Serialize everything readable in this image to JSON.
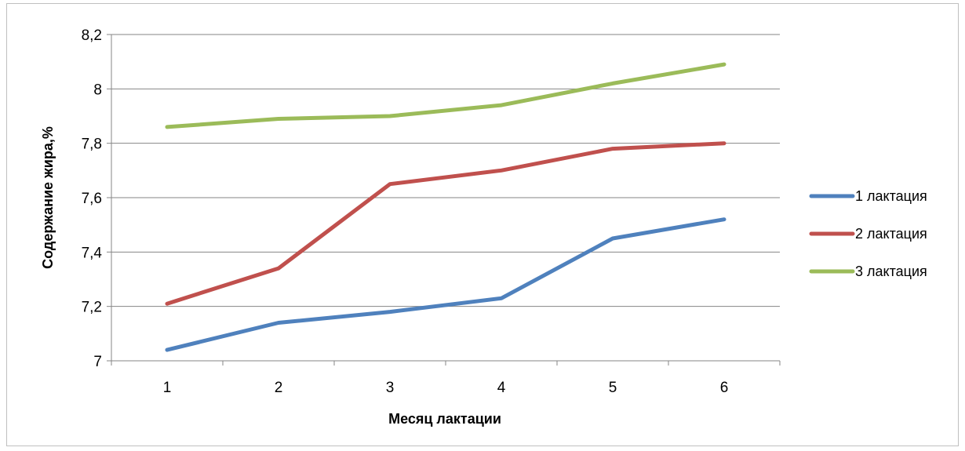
{
  "chart_data": {
    "type": "line",
    "title": "",
    "xlabel": "Месяц лактации",
    "ylabel": "Содержание жира,%",
    "categories": [
      "1",
      "2",
      "3",
      "4",
      "5",
      "6"
    ],
    "ylim": [
      7,
      8.2
    ],
    "yticks": [
      "7",
      "7,2",
      "7,4",
      "7,6",
      "7,8",
      "8",
      "8,2"
    ],
    "ytick_values": [
      7,
      7.2,
      7.4,
      7.6,
      7.8,
      8,
      8.2
    ],
    "grid": true,
    "legend_position": "right",
    "series": [
      {
        "name": "1 лактация",
        "color": "#4f81bd",
        "values": [
          7.04,
          7.14,
          7.18,
          7.23,
          7.45,
          7.52
        ]
      },
      {
        "name": "2 лактация",
        "color": "#c0504d",
        "values": [
          7.21,
          7.34,
          7.65,
          7.7,
          7.78,
          7.8
        ]
      },
      {
        "name": "3 лактация",
        "color": "#9bbb59",
        "values": [
          7.86,
          7.89,
          7.9,
          7.94,
          8.02,
          8.09
        ]
      }
    ]
  }
}
